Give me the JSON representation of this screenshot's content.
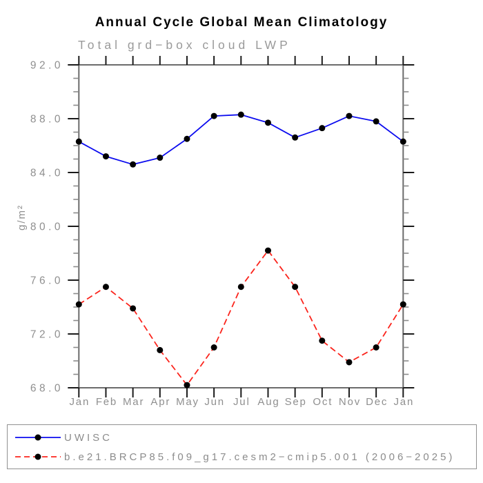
{
  "title": "Annual Cycle Global Mean Climatology",
  "subtitle": "Total grd−box cloud LWP",
  "chart_data": {
    "type": "line",
    "title": "Annual Cycle Global Mean Climatology",
    "subtitle": "Total grd−box cloud LWP",
    "ylabel": "g/m²",
    "xlabel": "",
    "categories": [
      "Jan",
      "Feb",
      "Mar",
      "Apr",
      "May",
      "Jun",
      "Jul",
      "Aug",
      "Sep",
      "Oct",
      "Nov",
      "Dec",
      "Jan"
    ],
    "ylim": [
      68.0,
      92.0
    ],
    "yticks": [
      92.0,
      88.0,
      84.0,
      80.0,
      76.0,
      72.0,
      68.0
    ],
    "ytick_labels": [
      "92.0",
      "88.0",
      "84.0",
      "80.0",
      "76.0",
      "72.0",
      "68.0"
    ],
    "minor_tick_step": 1.0,
    "grid": false,
    "legend_position": "bottom-outside-box",
    "series": [
      {
        "name": "UWISC",
        "color": "#0b0bef",
        "line_style": "solid",
        "marker": "filled-circle",
        "marker_color": "#000000",
        "values": [
          86.3,
          85.2,
          84.6,
          85.1,
          86.5,
          88.2,
          88.3,
          87.7,
          86.6,
          87.3,
          88.2,
          87.8,
          86.3
        ]
      },
      {
        "name": "b.e21.BRCP85.f09_g17.cesm2−cmip5.001 (2006−2025)",
        "color": "#fb241c",
        "line_style": "dashed",
        "marker": "filled-circle",
        "marker_color": "#000000",
        "values": [
          74.2,
          75.5,
          73.9,
          70.8,
          68.2,
          71.0,
          75.5,
          78.2,
          75.5,
          71.5,
          69.9,
          71.0,
          74.2
        ]
      }
    ]
  },
  "palette": {
    "title_color": "#000000",
    "subtitle_color": "#9a9a9a",
    "tick_label_color": "#8f8f8f",
    "axis_color": "#6b6b6b",
    "major_tick_color": "#1a1a1a",
    "minor_tick_color": "#8a8a8a",
    "legend_border_color": "#909090",
    "background": "#ffffff"
  }
}
